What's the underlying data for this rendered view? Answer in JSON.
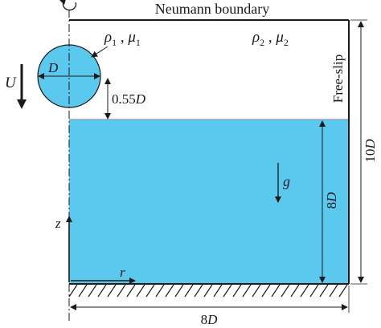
{
  "top_boundary_label": "Neumann boundary",
  "free_slip_label": "Free-slip",
  "drop_properties": {
    "rho": "ρ",
    "rho_sub": "1",
    "comma": " , ",
    "mu": "μ",
    "mu_sub": "1"
  },
  "ambient_properties": {
    "rho": "ρ",
    "rho_sub": "2",
    "comma": " , ",
    "mu": "μ",
    "mu_sub": "2"
  },
  "diameter_label": "D",
  "velocity_label": "U",
  "gap_label": {
    "number": "0.55",
    "unit": "D"
  },
  "gravity_label": "g",
  "liquid_depth_label": {
    "number": "8",
    "unit": "D"
  },
  "domain_height_label": {
    "number": "10",
    "unit": "D"
  },
  "domain_width_label": {
    "number": "8",
    "unit": "D"
  },
  "axes": {
    "z": "z",
    "r": "r"
  },
  "colors": {
    "liquid": "#5bc8ee",
    "drop": "#5bc8ee",
    "liquid_edge": "#8fa8c8",
    "line": "#1a1a1a"
  }
}
